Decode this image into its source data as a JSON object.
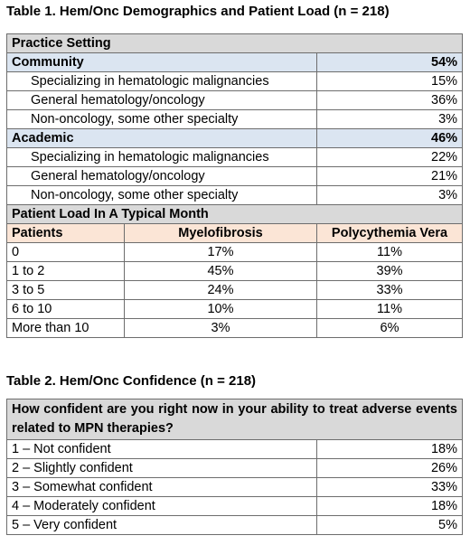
{
  "table1": {
    "caption": "Table 1. Hem/Onc Demographics and Patient Load (n = 218)",
    "practice_setting": "Practice Setting",
    "community": {
      "label": "Community",
      "pct": "54%",
      "rows": [
        {
          "label": "Specializing in hematologic malignancies",
          "pct": "15%"
        },
        {
          "label": "General hematology/oncology",
          "pct": "36%"
        },
        {
          "label": "Non-oncology, some other specialty",
          "pct": "3%"
        }
      ]
    },
    "academic": {
      "label": "Academic",
      "pct": "46%",
      "rows": [
        {
          "label": "Specializing in hematologic malignancies",
          "pct": "22%"
        },
        {
          "label": "General hematology/oncology",
          "pct": "21%"
        },
        {
          "label": "Non-oncology, some other specialty",
          "pct": "3%"
        }
      ]
    },
    "patient_load": {
      "title": "Patient Load In A Typical Month",
      "headers": [
        "Patients",
        "Myelofibrosis",
        "Polycythemia Vera"
      ],
      "rows": [
        [
          "0",
          "17%",
          "11%"
        ],
        [
          "1 to 2",
          "45%",
          "39%"
        ],
        [
          "3 to 5",
          "24%",
          "33%"
        ],
        [
          "6 to 10",
          "10%",
          "11%"
        ],
        [
          "More than 10",
          "3%",
          "6%"
        ]
      ]
    }
  },
  "table2": {
    "caption": "Table 2. Hem/Onc Confidence (n = 218)",
    "question": "How confident are you right now in your ability to treat adverse events related to MPN therapies?",
    "rows": [
      {
        "label": "1 – Not confident",
        "pct": "18%"
      },
      {
        "label": "2 – Slightly confident",
        "pct": "26%"
      },
      {
        "label": "3 – Somewhat confident",
        "pct": "33%"
      },
      {
        "label": "4 – Moderately confident",
        "pct": "18%"
      },
      {
        "label": "5 – Very confident",
        "pct": "5%"
      }
    ]
  }
}
